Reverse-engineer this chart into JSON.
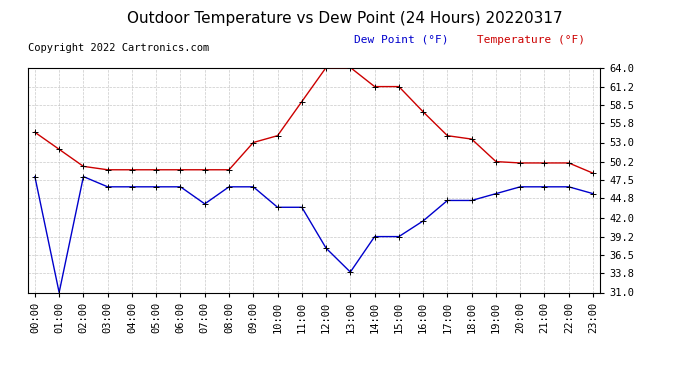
{
  "title": "Outdoor Temperature vs Dew Point (24 Hours) 20220317",
  "copyright": "Copyright 2022 Cartronics.com",
  "legend_dew": "Dew Point (°F)",
  "legend_temp": "Temperature (°F)",
  "hours": [
    0,
    1,
    2,
    3,
    4,
    5,
    6,
    7,
    8,
    9,
    10,
    11,
    12,
    13,
    14,
    15,
    16,
    17,
    18,
    19,
    20,
    21,
    22,
    23
  ],
  "x_labels": [
    "00:00",
    "01:00",
    "02:00",
    "03:00",
    "04:00",
    "05:00",
    "06:00",
    "07:00",
    "08:00",
    "09:00",
    "10:00",
    "11:00",
    "12:00",
    "13:00",
    "14:00",
    "15:00",
    "16:00",
    "17:00",
    "18:00",
    "19:00",
    "20:00",
    "21:00",
    "22:00",
    "23:00"
  ],
  "temperature": [
    54.5,
    52.0,
    49.5,
    49.0,
    49.0,
    49.0,
    49.0,
    49.0,
    49.0,
    53.0,
    54.0,
    59.0,
    64.0,
    64.0,
    61.2,
    61.2,
    57.5,
    54.0,
    53.5,
    50.2,
    50.0,
    50.0,
    50.0,
    48.5
  ],
  "dew_point": [
    48.0,
    31.0,
    48.0,
    46.5,
    46.5,
    46.5,
    46.5,
    44.0,
    46.5,
    46.5,
    43.5,
    43.5,
    37.5,
    34.0,
    39.2,
    39.2,
    41.5,
    44.5,
    44.5,
    45.5,
    46.5,
    46.5,
    46.5,
    45.5
  ],
  "temp_color": "#cc0000",
  "dew_color": "#0000cc",
  "ylim_min": 31.0,
  "ylim_max": 64.0,
  "yticks": [
    31.0,
    33.8,
    36.5,
    39.2,
    42.0,
    44.8,
    47.5,
    50.2,
    53.0,
    55.8,
    58.5,
    61.2,
    64.0
  ],
  "background_color": "#ffffff",
  "grid_color": "#bbbbbb",
  "title_fontsize": 11,
  "copyright_fontsize": 7.5,
  "legend_fontsize": 8,
  "tick_fontsize": 7.5
}
